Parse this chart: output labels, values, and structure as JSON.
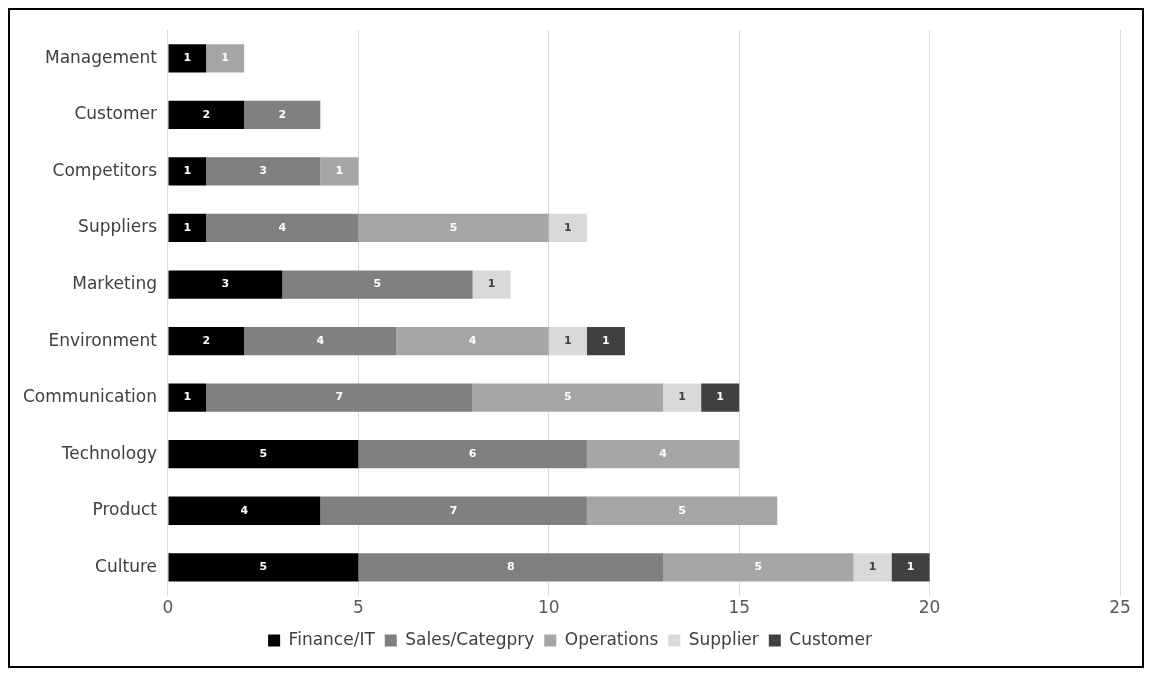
{
  "chart_data": {
    "type": "bar",
    "orientation": "horizontal",
    "stacked": true,
    "data_labels": true,
    "grid": "x",
    "legend": "bottom",
    "categories": [
      "Management",
      "Customer",
      "Competitors",
      "Suppliers",
      "Marketing",
      "Environment",
      "Communication",
      "Technology",
      "Product",
      "Culture"
    ],
    "xlim": [
      0,
      25
    ],
    "xticks": [
      0,
      5,
      10,
      15,
      20,
      25
    ],
    "series": [
      {
        "name": "Finance/IT",
        "color": "#000000",
        "values": [
          1,
          2,
          1,
          1,
          3,
          2,
          1,
          5,
          4,
          5
        ]
      },
      {
        "name": "Sales/Categpry",
        "color": "#808080",
        "values": [
          null,
          2,
          3,
          4,
          5,
          4,
          7,
          6,
          7,
          8
        ]
      },
      {
        "name": "Operations",
        "color": "#a6a6a6",
        "values": [
          1,
          null,
          1,
          5,
          null,
          4,
          5,
          4,
          5,
          5
        ]
      },
      {
        "name": "Supplier",
        "color": "#d9d9d9",
        "values": [
          null,
          null,
          null,
          1,
          1,
          1,
          1,
          null,
          null,
          1
        ]
      },
      {
        "name": "Customer",
        "color": "#404040",
        "values": [
          null,
          null,
          null,
          null,
          null,
          1,
          1,
          null,
          null,
          1
        ]
      }
    ]
  }
}
